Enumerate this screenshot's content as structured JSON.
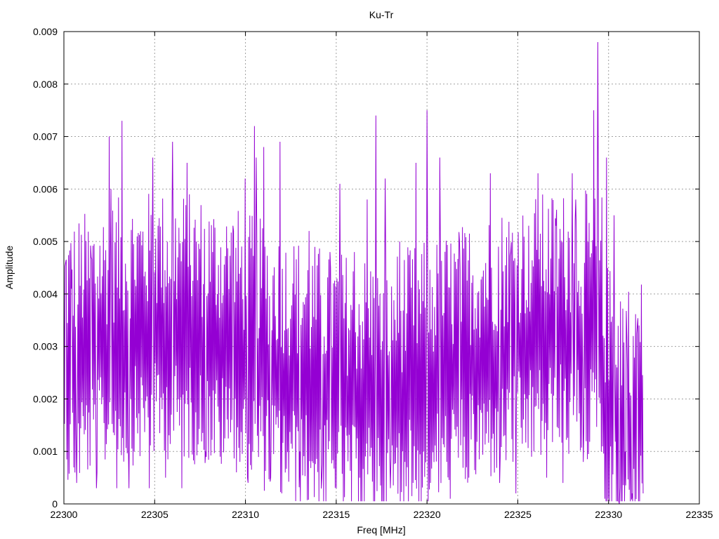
{
  "chart_data": {
    "type": "line",
    "title": "Ku-Tr",
    "xlabel": "Freq [MHz]",
    "ylabel": "Amplitude",
    "xlim": [
      22300,
      22335
    ],
    "ylim": [
      0,
      0.009
    ],
    "x_ticks": [
      "22300",
      "22305",
      "22310",
      "22315",
      "22320",
      "22325",
      "22330",
      "22335"
    ],
    "y_ticks": [
      "0",
      "0.001",
      "0.002",
      "0.003",
      "0.004",
      "0.005",
      "0.006",
      "0.007",
      "0.008",
      "0.009"
    ],
    "grid": true,
    "legend": "none",
    "series": [
      {
        "color": "#9400d3",
        "x_start": 22300,
        "x_step": 0.032,
        "x_end": 22331.9,
        "peaks": [
          [
            22300.1,
            0.0046
          ],
          [
            22300.4,
            0.0041
          ],
          [
            22300.7,
            0.0004
          ],
          [
            22301.4,
            0.0043
          ],
          [
            22301.5,
            0.0047
          ],
          [
            22301.8,
            0.0003
          ],
          [
            22302.5,
            0.007
          ],
          [
            22302.6,
            0.006
          ],
          [
            22302.9,
            0.0003
          ],
          [
            22303.2,
            0.0073
          ],
          [
            22303.6,
            0.0003
          ],
          [
            22304.7,
            0.0003
          ],
          [
            22304.9,
            0.0066
          ],
          [
            22305.2,
            0.0053
          ],
          [
            22305.6,
            0.0005
          ],
          [
            22306.0,
            0.0069
          ],
          [
            22306.5,
            0.0003
          ],
          [
            22306.8,
            0.0065
          ],
          [
            22307.3,
            0.005
          ],
          [
            22307.8,
            0.001
          ],
          [
            22308.2,
            0.0048
          ],
          [
            22308.6,
            0.0009
          ],
          [
            22309.3,
            0.0053
          ],
          [
            22309.7,
            0.0008
          ],
          [
            22310.0,
            0.0062
          ],
          [
            22310.1,
            0.0005
          ],
          [
            22310.5,
            0.0072
          ],
          [
            22310.6,
            0.0066
          ],
          [
            22311.0,
            0.0068
          ],
          [
            22311.4,
            0.0005
          ],
          [
            22311.9,
            0.0069
          ],
          [
            22312.0,
            0.0002
          ],
          [
            22312.6,
            0.0042
          ],
          [
            22313.0,
            0.001
          ],
          [
            22313.5,
            0.0052
          ],
          [
            22314.2,
            0.0005
          ],
          [
            22314.7,
            0.0045
          ],
          [
            22315.0,
            0.0003
          ],
          [
            22315.2,
            0.0061
          ],
          [
            22315.6,
            0.0013
          ],
          [
            22316.0,
            0.0048
          ],
          [
            22316.3,
            0.0005
          ],
          [
            22316.7,
            0.0058
          ],
          [
            22317.2,
            0.0074
          ],
          [
            22317.4,
            0.004
          ],
          [
            22317.7,
            0.0062
          ],
          [
            22318.0,
            0.0003
          ],
          [
            22318.5,
            0.005
          ],
          [
            22318.8,
            0.0008
          ],
          [
            22319.4,
            0.0065
          ],
          [
            22319.8,
            0.001
          ],
          [
            22320.0,
            0.0075
          ],
          [
            22320.2,
            0.0004
          ],
          [
            22320.7,
            0.0066
          ],
          [
            22321.1,
            0.0008
          ],
          [
            22321.8,
            0.005
          ],
          [
            22322.3,
            0.0005
          ],
          [
            22323.5,
            0.0063
          ],
          [
            22324.0,
            0.0004
          ],
          [
            22324.6,
            0.0048
          ],
          [
            22324.9,
            0.0002
          ],
          [
            22325.6,
            0.0053
          ],
          [
            22325.9,
            0.001
          ],
          [
            22326.1,
            0.0063
          ],
          [
            22326.6,
            0.0005
          ],
          [
            22327.1,
            0.0053
          ],
          [
            22327.5,
            0.0004
          ],
          [
            22328.0,
            0.0063
          ],
          [
            22328.2,
            0.0058
          ],
          [
            22328.6,
            0.0008
          ],
          [
            22329.0,
            0.0047
          ],
          [
            22329.2,
            0.0075
          ],
          [
            22329.4,
            0.0088
          ],
          [
            22329.6,
            0.001
          ],
          [
            22329.9,
            0.0066
          ],
          [
            22330.3,
            0.0055
          ],
          [
            22330.6,
            0.0
          ],
          [
            22330.9,
            0.001
          ],
          [
            22331.0,
            0.0032
          ],
          [
            22331.3,
            0.0002
          ],
          [
            22331.6,
            0.0034
          ],
          [
            22331.9,
            0.0002
          ]
        ]
      }
    ]
  }
}
